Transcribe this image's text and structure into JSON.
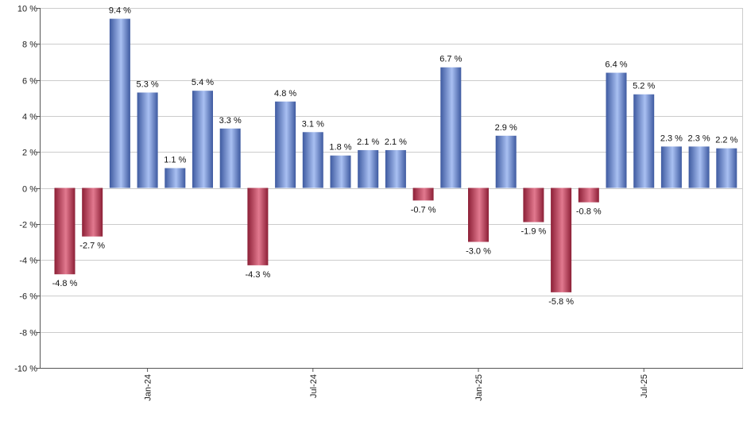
{
  "chart_data": {
    "type": "bar",
    "title": "",
    "xlabel": "",
    "ylabel": "",
    "value_suffix": " %",
    "ylim": [
      -10,
      10
    ],
    "y_ticks": [
      10,
      8,
      6,
      4,
      2,
      0,
      -2,
      -4,
      -6,
      -8,
      -10
    ],
    "y_tick_labels": [
      "10 %",
      "8 %",
      "6 %",
      "4 %",
      "2 %",
      "0 %",
      "-2 %",
      "-4 %",
      "-6 %",
      "-8 %",
      "-10 %"
    ],
    "grid": true,
    "legend": "none",
    "categories": [
      "2023-10",
      "2023-11",
      "2023-12",
      "2024-01",
      "2024-02",
      "2024-03",
      "2024-04",
      "2024-05",
      "2024-06",
      "2024-07",
      "2024-08",
      "2024-09",
      "2024-10",
      "2024-11",
      "2024-12",
      "2025-01",
      "2025-02",
      "2025-03",
      "2025-04",
      "2025-05",
      "2025-06",
      "2025-07",
      "2025-08",
      "2025-09",
      "2025-10"
    ],
    "values": [
      -4.8,
      -2.7,
      9.4,
      5.3,
      1.1,
      5.4,
      3.3,
      -4.3,
      4.8,
      3.1,
      1.8,
      2.1,
      2.1,
      -0.7,
      6.7,
      -3.0,
      2.9,
      -1.9,
      -5.8,
      -0.8,
      6.4,
      5.2,
      2.3,
      2.3,
      2.2
    ],
    "data_labels": [
      "-4.8 %",
      "-2.7 %",
      "9.4 %",
      "5.3 %",
      "1.1 %",
      "5.4 %",
      "3.3 %",
      "-4.3 %",
      "4.8 %",
      "3.1 %",
      "1.8 %",
      "2.1 %",
      "2.1 %",
      "-0.7 %",
      "6.7 %",
      "-3.0 %",
      "2.9 %",
      "-1.9 %",
      "-5.8 %",
      "-0.8 %",
      "6.4 %",
      "5.2 %",
      "2.3 %",
      "2.3 %",
      "2.2 %"
    ],
    "x_ticks": [
      {
        "label": "Jan-24",
        "category": "2024-01"
      },
      {
        "label": "Jul-24",
        "category": "2024-07"
      },
      {
        "label": "Jan-25",
        "category": "2025-01"
      },
      {
        "label": "Jul-25",
        "category": "2025-07"
      }
    ],
    "colors": {
      "positive": "#6f8fd6",
      "positive_light": "#a9c0f2",
      "positive_dark": "#3e5aa0",
      "negative": "#c8405c",
      "negative_light": "#e2798f",
      "negative_dark": "#8c1f36",
      "grid": "#cccccc",
      "axis": "#555555"
    }
  }
}
